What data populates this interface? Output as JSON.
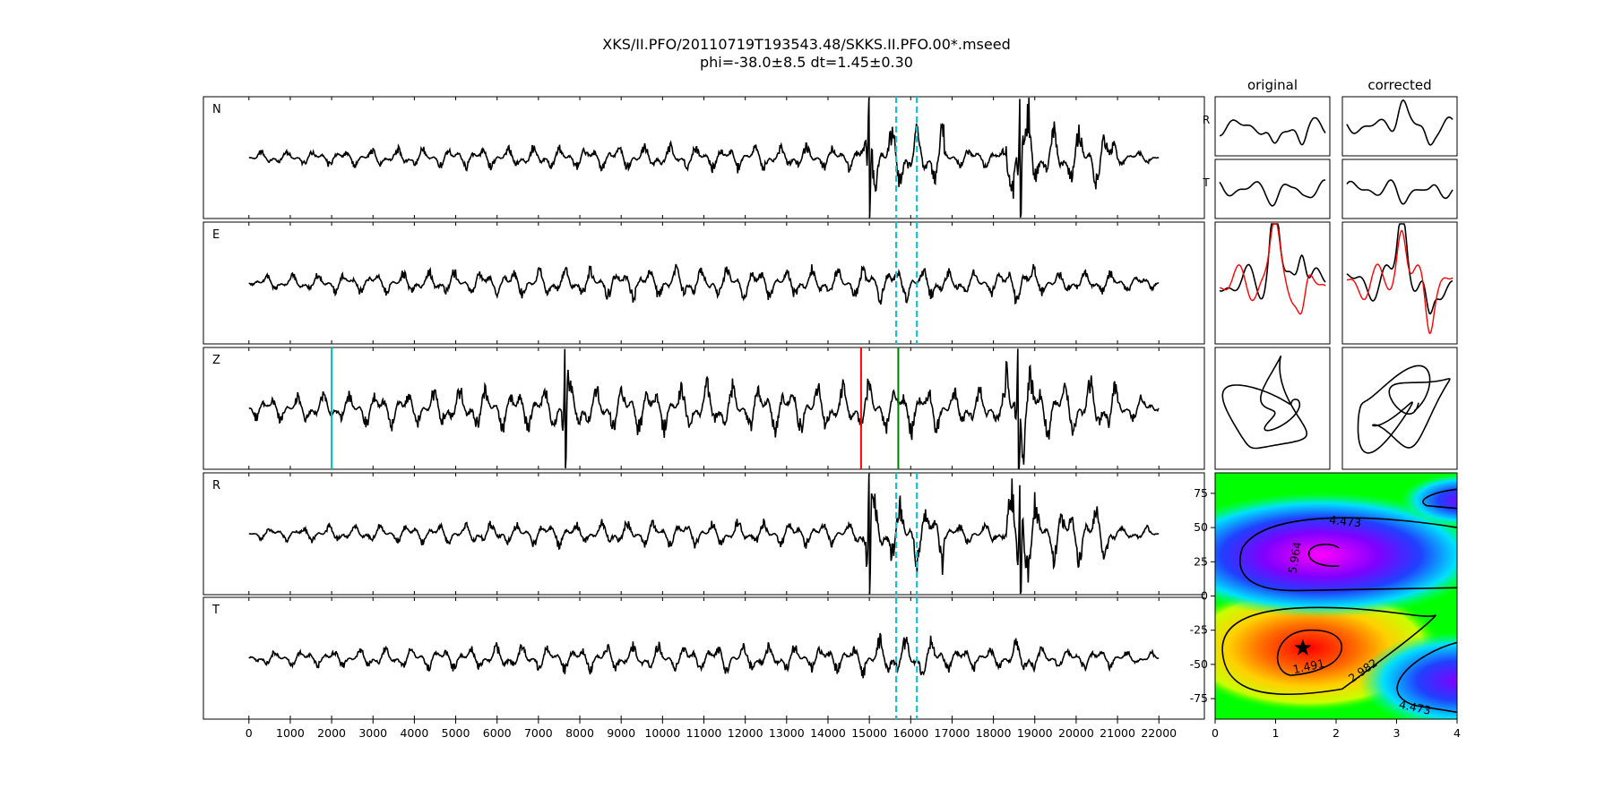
{
  "title": "XKS/II.PFO/20110719T193543.48/SKKS.II.PFO.00*.mseed",
  "subtitle": "phi=-38.0±8.5 dt=1.45±0.30",
  "colors": {
    "trace": "#000000",
    "window": "#17becf",
    "pick_cyan": "#00bfbf",
    "pick_red": "#ff0000",
    "pick_green": "#008000",
    "corrected_trace": "#ff0000"
  },
  "chart_data": [
    {
      "type": "line",
      "name": "seismogram-panel",
      "traces": [
        {
          "label": "N",
          "event_times": [
            15000,
            18650
          ],
          "noise_amp": 0.18,
          "window_amp": 0.55,
          "late_amp": 0.9
        },
        {
          "label": "E",
          "event_times": [],
          "noise_amp": 0.22,
          "window_amp": 0.3,
          "late_amp": 0.35
        },
        {
          "label": "Z",
          "event_times": [
            7650,
            18600
          ],
          "noise_amp": 0.35,
          "window_amp": 0.45,
          "late_amp": 0.9
        },
        {
          "label": "R",
          "event_times": [
            15000,
            18650
          ],
          "noise_amp": 0.18,
          "window_amp": 0.55,
          "late_amp": 0.9
        },
        {
          "label": "T",
          "event_times": [],
          "noise_amp": 0.2,
          "window_amp": 0.35,
          "late_amp": 0.3
        }
      ],
      "x_range": [
        -1100,
        23100
      ],
      "trace_x_range": [
        0,
        22000
      ],
      "x_ticks": [
        0,
        1000,
        2000,
        3000,
        4000,
        5000,
        6000,
        7000,
        8000,
        9000,
        10000,
        11000,
        12000,
        13000,
        14000,
        15000,
        16000,
        17000,
        18000,
        19000,
        20000,
        21000,
        22000
      ],
      "window_lines": [
        15650,
        16150
      ],
      "window_line_traces": [
        "N",
        "E",
        "R",
        "T"
      ],
      "picks": [
        {
          "trace": "Z",
          "x": 2000,
          "color": "#00bfbf"
        },
        {
          "trace": "Z",
          "x": 14800,
          "color": "#ff0000"
        },
        {
          "trace": "Z",
          "x": 15700,
          "color": "#008000"
        }
      ]
    },
    {
      "type": "line",
      "name": "waveform-comparison",
      "column_titles": [
        "original",
        "corrected"
      ],
      "row_labels": [
        "R",
        "T"
      ],
      "overlay_series_color": "#ff0000"
    },
    {
      "type": "heatmap",
      "name": "error-surface",
      "x_range": [
        0,
        4
      ],
      "y_range": [
        -90,
        90
      ],
      "x_ticks": [
        0,
        1,
        2,
        3,
        4
      ],
      "y_ticks": [
        75,
        50,
        25,
        0,
        -25,
        -50,
        -75
      ],
      "minimum": {
        "dt": 1.45,
        "phi": -38.0
      },
      "contour_labels": [
        {
          "text": "4.473",
          "dt": 2.15,
          "phi": 54
        },
        {
          "text": "5.964",
          "dt": 1.33,
          "phi": 28
        },
        {
          "text": "1.491",
          "dt": 1.55,
          "phi": -52
        },
        {
          "text": "2.982",
          "dt": 2.45,
          "phi": -55
        },
        {
          "text": "4.473",
          "dt": 3.3,
          "phi": -82
        }
      ]
    }
  ]
}
